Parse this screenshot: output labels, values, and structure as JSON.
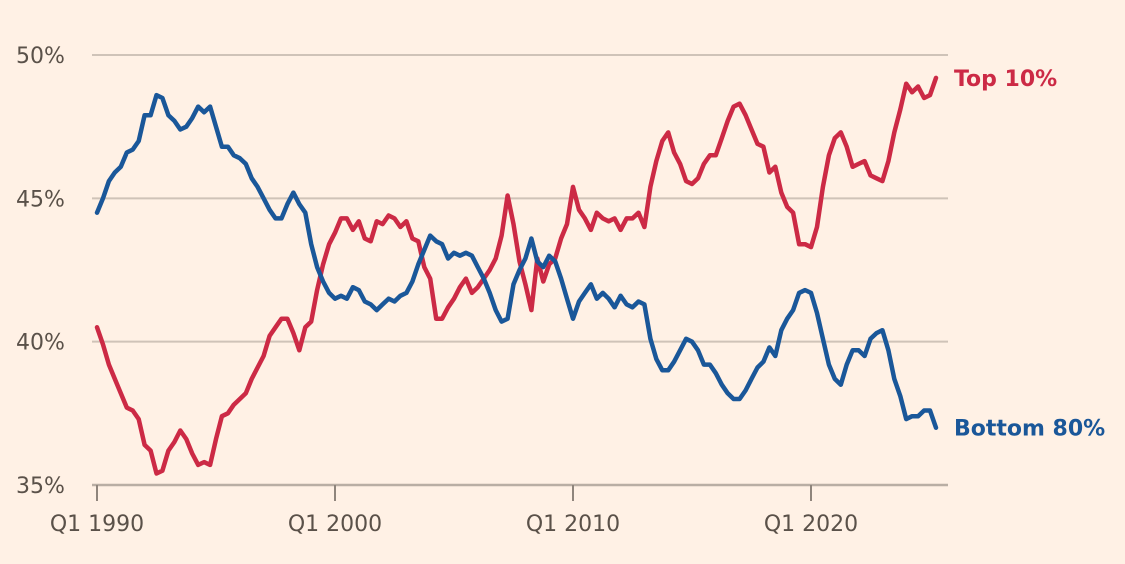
{
  "chart_data": {
    "type": "line",
    "title": "",
    "xlabel": "",
    "ylabel": "",
    "x_start": "Q1 1990",
    "x_end": "Q2 2025",
    "frequency": "quarterly",
    "ylim": [
      35,
      50
    ],
    "yticks": [
      35,
      40,
      45,
      50
    ],
    "ytick_labels": [
      "35%",
      "40%",
      "45%",
      "50%"
    ],
    "xticks": [
      1990,
      2000,
      2010,
      2020
    ],
    "xtick_labels": [
      "Q1 1990",
      "Q1 2000",
      "Q1 2010",
      "Q1 2020"
    ],
    "grid": true,
    "legend": "inline labels at right end of lines",
    "series": [
      {
        "name": "Top 10%",
        "color": "#cc2a45",
        "values": [
          40.5,
          39.9,
          39.2,
          38.7,
          38.2,
          37.7,
          37.6,
          37.3,
          36.4,
          36.2,
          35.4,
          35.5,
          36.2,
          36.5,
          36.9,
          36.6,
          36.1,
          35.7,
          35.8,
          35.7,
          36.6,
          37.4,
          37.5,
          37.8,
          38.0,
          38.2,
          38.7,
          39.1,
          39.5,
          40.2,
          40.5,
          40.8,
          40.8,
          40.3,
          39.7,
          40.5,
          40.7,
          41.8,
          42.7,
          43.4,
          43.8,
          44.3,
          44.3,
          43.9,
          44.2,
          43.6,
          43.5,
          44.2,
          44.1,
          44.4,
          44.3,
          44.0,
          44.2,
          43.6,
          43.5,
          42.6,
          42.2,
          40.8,
          40.8,
          41.2,
          41.5,
          41.9,
          42.2,
          41.7,
          41.9,
          42.2,
          42.5,
          42.9,
          43.7,
          45.1,
          44.1,
          42.8,
          42.0,
          41.1,
          42.9,
          42.1,
          42.7,
          42.9,
          43.6,
          44.1,
          45.4,
          44.6,
          44.3,
          43.9,
          44.5,
          44.3,
          44.2,
          44.3,
          43.9,
          44.3,
          44.3,
          44.5,
          44.0,
          45.4,
          46.3,
          47.0,
          47.3,
          46.6,
          46.2,
          45.6,
          45.5,
          45.7,
          46.2,
          46.5,
          46.5,
          47.1,
          47.7,
          48.2,
          48.3,
          47.9,
          47.4,
          46.9,
          46.8,
          45.9,
          46.1,
          45.2,
          44.7,
          44.5,
          43.4,
          43.4,
          43.3,
          44.0,
          45.4,
          46.5,
          47.1,
          47.3,
          46.8,
          46.1,
          46.2,
          46.3,
          45.8,
          45.7,
          45.6,
          46.3,
          47.3,
          48.1,
          49.0,
          48.7,
          48.9,
          48.5,
          48.6,
          49.2
        ]
      },
      {
        "name": "Bottom 80%",
        "color": "#1a5799",
        "values": [
          44.5,
          45.0,
          45.6,
          45.9,
          46.1,
          46.6,
          46.7,
          47.0,
          47.9,
          47.9,
          48.6,
          48.5,
          47.9,
          47.7,
          47.4,
          47.5,
          47.8,
          48.2,
          48.0,
          48.2,
          47.5,
          46.8,
          46.8,
          46.5,
          46.4,
          46.2,
          45.7,
          45.4,
          45.0,
          44.6,
          44.3,
          44.3,
          44.8,
          45.2,
          44.8,
          44.5,
          43.4,
          42.6,
          42.1,
          41.7,
          41.5,
          41.6,
          41.5,
          41.9,
          41.8,
          41.4,
          41.3,
          41.1,
          41.3,
          41.5,
          41.4,
          41.6,
          41.7,
          42.1,
          42.7,
          43.2,
          43.7,
          43.5,
          43.4,
          42.9,
          43.1,
          43.0,
          43.1,
          43.0,
          42.6,
          42.2,
          41.7,
          41.1,
          40.7,
          40.8,
          42.0,
          42.5,
          42.9,
          43.6,
          42.8,
          42.6,
          43.0,
          42.8,
          42.2,
          41.5,
          40.8,
          41.4,
          41.7,
          42.0,
          41.5,
          41.7,
          41.5,
          41.2,
          41.6,
          41.3,
          41.2,
          41.4,
          41.3,
          40.1,
          39.4,
          39.0,
          39.0,
          39.3,
          39.7,
          40.1,
          40.0,
          39.7,
          39.2,
          39.2,
          38.9,
          38.5,
          38.2,
          38.0,
          38.0,
          38.3,
          38.7,
          39.1,
          39.3,
          39.8,
          39.5,
          40.4,
          40.8,
          41.1,
          41.7,
          41.8,
          41.7,
          41.0,
          40.1,
          39.2,
          38.7,
          38.5,
          39.2,
          39.7,
          39.7,
          39.5,
          40.1,
          40.3,
          40.4,
          39.7,
          38.7,
          38.1,
          37.3,
          37.4,
          37.4,
          37.6,
          37.6,
          37.0
        ]
      }
    ]
  }
}
